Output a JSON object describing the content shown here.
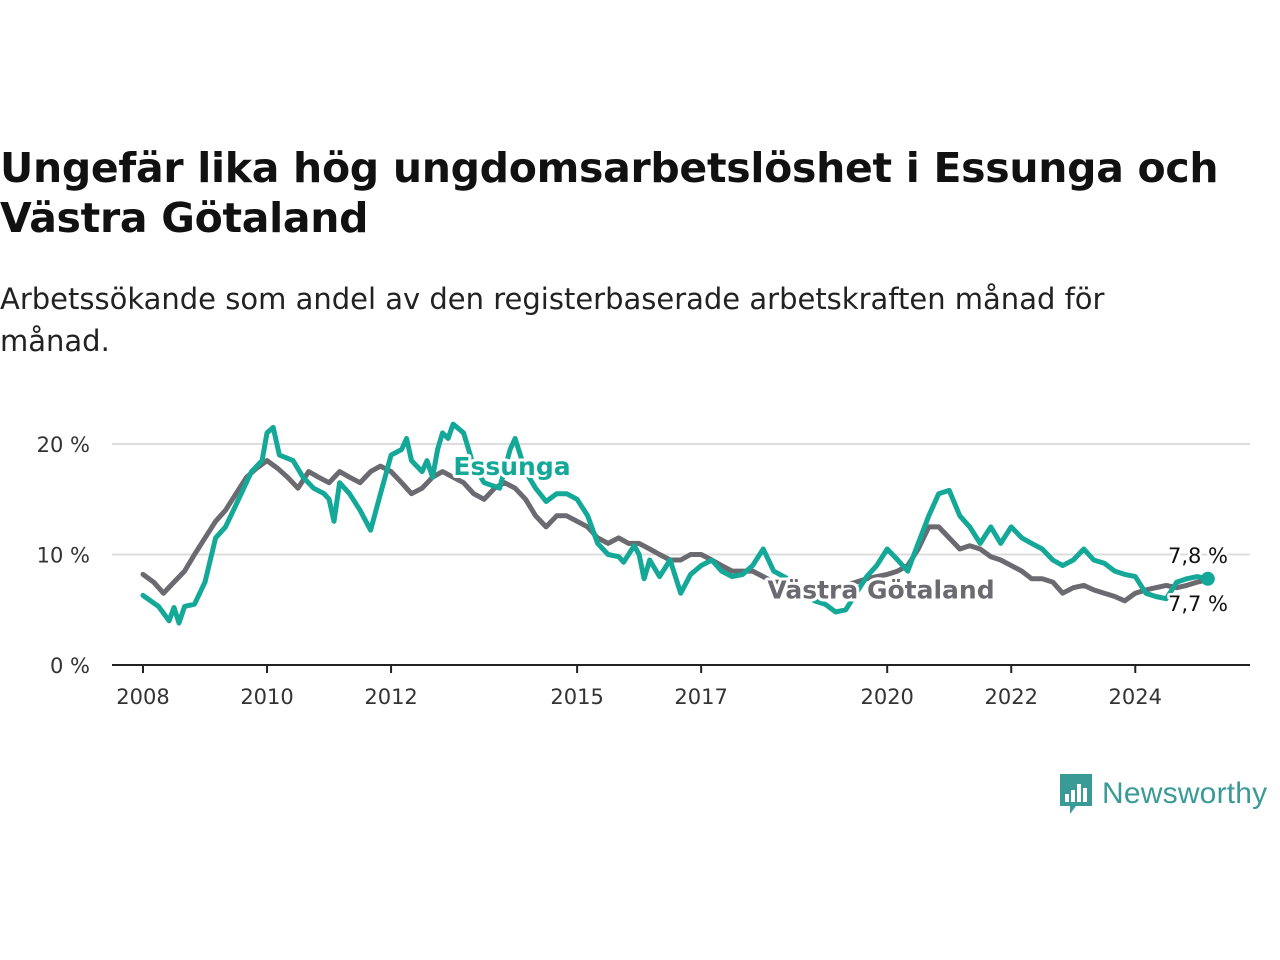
{
  "header": {
    "title": "Ungefär lika hög ungdomsarbetslöshet i Essunga och Västra Götaland",
    "subtitle": "Arbetssökande som andel av den registerbaserade arbetskraften månad för månad."
  },
  "brand": {
    "name": "Newsworthy",
    "icon": "newsworthy-logo-icon",
    "color": "#3a9a95"
  },
  "colors": {
    "essunga": "#14a898",
    "vastra_gotaland": "#6b6a70",
    "axis": "#222222",
    "grid": "#dddddd"
  },
  "chart_data": {
    "type": "line",
    "title": "Ungefär lika hög ungdomsarbetslöshet i Essunga och Västra Götaland",
    "subtitle": "Arbetssökande som andel av den registerbaserade arbetskraften månad för månad.",
    "xlabel": "",
    "ylabel": "",
    "xlim": [
      2007.5,
      2025.85
    ],
    "ylim": [
      0,
      20
    ],
    "x_ticks": [
      2008,
      2010,
      2012,
      2015,
      2017,
      2020,
      2022,
      2024
    ],
    "x_tick_labels": [
      "2008",
      "2010",
      "2012",
      "2015",
      "2017",
      "2020",
      "2022",
      "2024"
    ],
    "y_ticks": [
      0,
      10,
      20
    ],
    "y_tick_labels": [
      "0 %",
      "10 %",
      "20 %"
    ],
    "grid": "horizontal",
    "legend": "direct labels on lines",
    "series": [
      {
        "name": "Essunga",
        "color": "#14a898",
        "end_label": "7,8 %",
        "points": [
          [
            2008.0,
            6.3
          ],
          [
            2008.25,
            5.3
          ],
          [
            2008.42,
            4.0
          ],
          [
            2008.5,
            5.2
          ],
          [
            2008.58,
            3.8
          ],
          [
            2008.67,
            5.3
          ],
          [
            2008.83,
            5.5
          ],
          [
            2009.0,
            7.5
          ],
          [
            2009.17,
            11.5
          ],
          [
            2009.33,
            12.5
          ],
          [
            2009.5,
            14.5
          ],
          [
            2009.75,
            17.5
          ],
          [
            2009.92,
            18.5
          ],
          [
            2010.0,
            21.0
          ],
          [
            2010.1,
            21.5
          ],
          [
            2010.2,
            19.0
          ],
          [
            2010.42,
            18.5
          ],
          [
            2010.58,
            17.0
          ],
          [
            2010.75,
            16.0
          ],
          [
            2010.92,
            15.5
          ],
          [
            2011.0,
            15.0
          ],
          [
            2011.08,
            13.0
          ],
          [
            2011.17,
            16.5
          ],
          [
            2011.33,
            15.5
          ],
          [
            2011.5,
            14.0
          ],
          [
            2011.67,
            12.2
          ],
          [
            2011.83,
            15.5
          ],
          [
            2012.0,
            19.0
          ],
          [
            2012.17,
            19.5
          ],
          [
            2012.25,
            20.5
          ],
          [
            2012.33,
            18.5
          ],
          [
            2012.5,
            17.5
          ],
          [
            2012.58,
            18.5
          ],
          [
            2012.67,
            17.0
          ],
          [
            2012.75,
            19.5
          ],
          [
            2012.83,
            21.0
          ],
          [
            2012.92,
            20.5
          ],
          [
            2013.0,
            21.8
          ],
          [
            2013.17,
            21.0
          ],
          [
            2013.33,
            18.0
          ],
          [
            2013.5,
            16.5
          ],
          [
            2013.75,
            16.0
          ],
          [
            2013.92,
            19.5
          ],
          [
            2014.0,
            20.5
          ],
          [
            2014.17,
            17.5
          ],
          [
            2014.33,
            16.0
          ],
          [
            2014.5,
            14.8
          ],
          [
            2014.67,
            15.5
          ],
          [
            2014.83,
            15.5
          ],
          [
            2015.0,
            15.0
          ],
          [
            2015.17,
            13.5
          ],
          [
            2015.33,
            11.0
          ],
          [
            2015.5,
            10.0
          ],
          [
            2015.67,
            9.8
          ],
          [
            2015.75,
            9.3
          ],
          [
            2015.92,
            10.8
          ],
          [
            2016.0,
            10.0
          ],
          [
            2016.08,
            7.8
          ],
          [
            2016.17,
            9.5
          ],
          [
            2016.33,
            8.0
          ],
          [
            2016.5,
            9.5
          ],
          [
            2016.67,
            6.5
          ],
          [
            2016.83,
            8.2
          ],
          [
            2017.0,
            9.0
          ],
          [
            2017.17,
            9.5
          ],
          [
            2017.33,
            8.5
          ],
          [
            2017.5,
            8.0
          ],
          [
            2017.67,
            8.2
          ],
          [
            2017.83,
            9.0
          ],
          [
            2018.0,
            10.5
          ],
          [
            2018.17,
            8.5
          ],
          [
            2018.33,
            8.0
          ],
          [
            2018.5,
            7.5
          ],
          [
            2018.67,
            6.5
          ],
          [
            2018.83,
            5.8
          ],
          [
            2019.0,
            5.5
          ],
          [
            2019.17,
            4.8
          ],
          [
            2019.33,
            5.0
          ],
          [
            2019.5,
            6.5
          ],
          [
            2019.67,
            8.0
          ],
          [
            2019.83,
            9.0
          ],
          [
            2020.0,
            10.5
          ],
          [
            2020.17,
            9.5
          ],
          [
            2020.33,
            8.5
          ],
          [
            2020.5,
            11.0
          ],
          [
            2020.67,
            13.5
          ],
          [
            2020.83,
            15.5
          ],
          [
            2021.0,
            15.8
          ],
          [
            2021.17,
            13.5
          ],
          [
            2021.33,
            12.5
          ],
          [
            2021.5,
            11.0
          ],
          [
            2021.67,
            12.5
          ],
          [
            2021.83,
            11.0
          ],
          [
            2022.0,
            12.5
          ],
          [
            2022.17,
            11.5
          ],
          [
            2022.33,
            11.0
          ],
          [
            2022.5,
            10.5
          ],
          [
            2022.67,
            9.5
          ],
          [
            2022.83,
            9.0
          ],
          [
            2023.0,
            9.5
          ],
          [
            2023.17,
            10.5
          ],
          [
            2023.33,
            9.5
          ],
          [
            2023.5,
            9.2
          ],
          [
            2023.67,
            8.5
          ],
          [
            2023.83,
            8.2
          ],
          [
            2024.0,
            8.0
          ],
          [
            2024.17,
            6.5
          ],
          [
            2024.33,
            6.2
          ],
          [
            2024.5,
            6.0
          ],
          [
            2024.67,
            7.5
          ],
          [
            2024.83,
            7.8
          ],
          [
            2025.0,
            8.0
          ],
          [
            2025.17,
            7.8
          ]
        ]
      },
      {
        "name": "Västra Götaland",
        "color": "#6b6a70",
        "end_label": "7,7 %",
        "points": [
          [
            2008.0,
            8.2
          ],
          [
            2008.17,
            7.5
          ],
          [
            2008.33,
            6.5
          ],
          [
            2008.5,
            7.5
          ],
          [
            2008.67,
            8.5
          ],
          [
            2008.83,
            10.0
          ],
          [
            2009.0,
            11.5
          ],
          [
            2009.17,
            13.0
          ],
          [
            2009.33,
            14.0
          ],
          [
            2009.5,
            15.5
          ],
          [
            2009.67,
            17.0
          ],
          [
            2009.83,
            17.8
          ],
          [
            2010.0,
            18.5
          ],
          [
            2010.17,
            17.8
          ],
          [
            2010.33,
            17.0
          ],
          [
            2010.5,
            16.0
          ],
          [
            2010.67,
            17.5
          ],
          [
            2010.83,
            17.0
          ],
          [
            2011.0,
            16.5
          ],
          [
            2011.17,
            17.5
          ],
          [
            2011.33,
            17.0
          ],
          [
            2011.5,
            16.5
          ],
          [
            2011.67,
            17.5
          ],
          [
            2011.83,
            18.0
          ],
          [
            2012.0,
            17.5
          ],
          [
            2012.17,
            16.5
          ],
          [
            2012.33,
            15.5
          ],
          [
            2012.5,
            16.0
          ],
          [
            2012.67,
            17.0
          ],
          [
            2012.83,
            17.5
          ],
          [
            2013.0,
            17.0
          ],
          [
            2013.17,
            16.5
          ],
          [
            2013.33,
            15.5
          ],
          [
            2013.5,
            15.0
          ],
          [
            2013.67,
            16.0
          ],
          [
            2013.83,
            16.5
          ],
          [
            2014.0,
            16.0
          ],
          [
            2014.17,
            15.0
          ],
          [
            2014.33,
            13.5
          ],
          [
            2014.5,
            12.5
          ],
          [
            2014.67,
            13.5
          ],
          [
            2014.83,
            13.5
          ],
          [
            2015.0,
            13.0
          ],
          [
            2015.17,
            12.5
          ],
          [
            2015.33,
            11.5
          ],
          [
            2015.5,
            11.0
          ],
          [
            2015.67,
            11.5
          ],
          [
            2015.83,
            11.0
          ],
          [
            2016.0,
            11.0
          ],
          [
            2016.17,
            10.5
          ],
          [
            2016.33,
            10.0
          ],
          [
            2016.5,
            9.5
          ],
          [
            2016.67,
            9.5
          ],
          [
            2016.83,
            10.0
          ],
          [
            2017.0,
            10.0
          ],
          [
            2017.17,
            9.5
          ],
          [
            2017.33,
            9.0
          ],
          [
            2017.5,
            8.5
          ],
          [
            2017.67,
            8.5
          ],
          [
            2017.83,
            8.5
          ],
          [
            2018.0,
            8.0
          ],
          [
            2018.17,
            7.5
          ],
          [
            2018.33,
            7.5
          ],
          [
            2018.5,
            7.2
          ],
          [
            2018.67,
            7.0
          ],
          [
            2018.83,
            6.8
          ],
          [
            2019.0,
            7.0
          ],
          [
            2019.17,
            7.0
          ],
          [
            2019.33,
            7.2
          ],
          [
            2019.5,
            7.5
          ],
          [
            2019.67,
            7.8
          ],
          [
            2019.83,
            8.0
          ],
          [
            2020.0,
            8.2
          ],
          [
            2020.17,
            8.5
          ],
          [
            2020.33,
            9.0
          ],
          [
            2020.5,
            10.5
          ],
          [
            2020.67,
            12.5
          ],
          [
            2020.83,
            12.5
          ],
          [
            2021.0,
            11.5
          ],
          [
            2021.17,
            10.5
          ],
          [
            2021.33,
            10.8
          ],
          [
            2021.5,
            10.5
          ],
          [
            2021.67,
            9.8
          ],
          [
            2021.83,
            9.5
          ],
          [
            2022.0,
            9.0
          ],
          [
            2022.17,
            8.5
          ],
          [
            2022.33,
            7.8
          ],
          [
            2022.5,
            7.8
          ],
          [
            2022.67,
            7.5
          ],
          [
            2022.83,
            6.5
          ],
          [
            2023.0,
            7.0
          ],
          [
            2023.17,
            7.2
          ],
          [
            2023.33,
            6.8
          ],
          [
            2023.5,
            6.5
          ],
          [
            2023.67,
            6.2
          ],
          [
            2023.83,
            5.8
          ],
          [
            2024.0,
            6.5
          ],
          [
            2024.17,
            6.8
          ],
          [
            2024.33,
            7.0
          ],
          [
            2024.5,
            7.2
          ],
          [
            2024.67,
            7.0
          ],
          [
            2024.83,
            7.2
          ],
          [
            2025.0,
            7.5
          ],
          [
            2025.17,
            7.7
          ]
        ]
      }
    ]
  }
}
